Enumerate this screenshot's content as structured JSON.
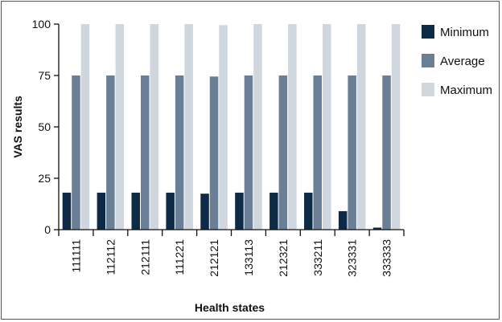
{
  "chart_data": {
    "type": "bar",
    "title": "",
    "xlabel": "Health states",
    "ylabel": "VAS results",
    "ylim": [
      0,
      100
    ],
    "yticks": [
      0,
      25,
      50,
      75,
      100
    ],
    "grid": false,
    "legend_position": "top-right",
    "categories": [
      "111111",
      "112112",
      "212111",
      "111221",
      "212121",
      "133113",
      "212321",
      "333211",
      "323331",
      "333333"
    ],
    "series": [
      {
        "name": "Minimum",
        "color": "#0d2a47",
        "values": [
          18,
          18,
          18,
          18,
          17.5,
          18,
          18,
          18,
          9,
          1
        ]
      },
      {
        "name": "Average",
        "color": "#6a7f96",
        "values": [
          75,
          75,
          75,
          75,
          74.5,
          75,
          75,
          75,
          75,
          75
        ]
      },
      {
        "name": "Maximum",
        "color": "#cfd6de",
        "values": [
          100,
          100,
          100,
          100,
          99.5,
          100,
          100,
          100,
          100,
          100
        ]
      }
    ]
  }
}
